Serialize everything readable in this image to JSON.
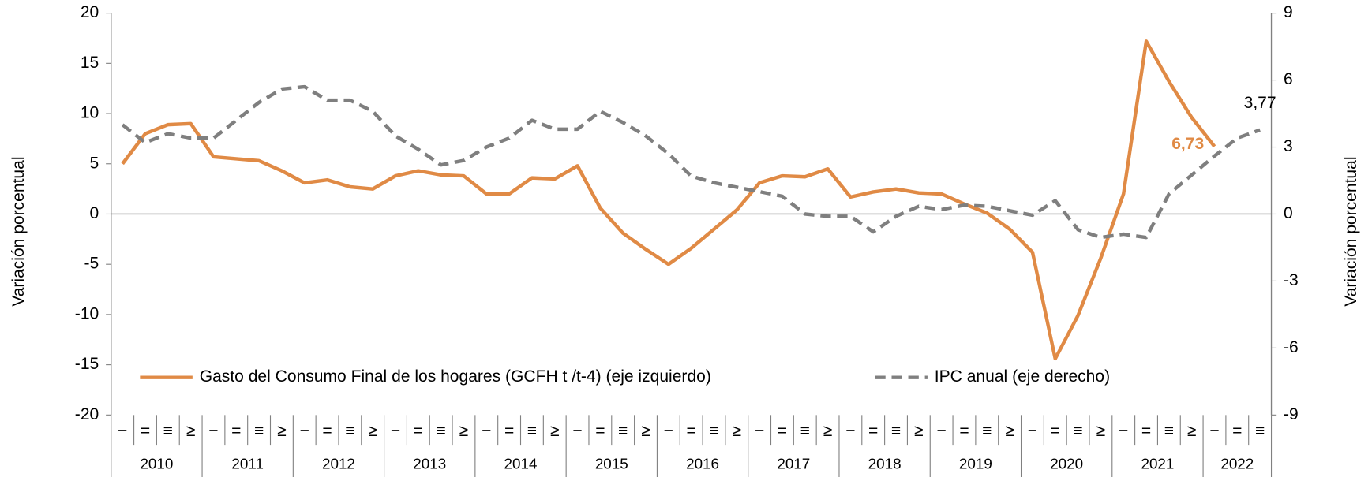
{
  "chart_data": {
    "type": "line",
    "categories": [
      "−",
      "=",
      "≡",
      "≥",
      "−",
      "=",
      "≡",
      "≥",
      "−",
      "=",
      "≡",
      "≥",
      "−",
      "=",
      "≡",
      "≥",
      "−",
      "=",
      "≡",
      "≥",
      "−",
      "=",
      "≡",
      "≥",
      "−",
      "=",
      "≡",
      "≥",
      "−",
      "=",
      "≡",
      "≥",
      "−",
      "=",
      "≡",
      "≥",
      "−",
      "=",
      "≡",
      "≥",
      "−",
      "=",
      "≡",
      "≥",
      "−",
      "=",
      "≡",
      "≥",
      "−",
      "=",
      "≡"
    ],
    "years": [
      "2010",
      "2011",
      "2012",
      "2013",
      "2014",
      "2015",
      "2016",
      "2017",
      "2018",
      "2019",
      "2020",
      "2021",
      "2022"
    ],
    "y_label": "Variación porcentual",
    "y2_label": "Variación porcentual",
    "ylim": [
      -20,
      20
    ],
    "yticks": [
      -20,
      -15,
      -10,
      -5,
      0,
      5,
      10,
      15,
      20
    ],
    "y2lim": [
      -9,
      9
    ],
    "y2ticks": [
      -9,
      -6,
      -3,
      0,
      3,
      6,
      9
    ],
    "series": [
      {
        "name": "Gasto del Consumo Final de los hogares (GCFH t /t-4)  (eje izquierdo)",
        "color": "#e08a45",
        "dash": false,
        "axis": "y",
        "values": [
          5.0,
          8.0,
          8.9,
          9.0,
          5.7,
          5.5,
          5.3,
          4.3,
          3.1,
          3.4,
          2.7,
          2.5,
          3.8,
          4.3,
          3.9,
          3.8,
          2.0,
          2.0,
          3.6,
          3.5,
          4.8,
          0.6,
          -1.9,
          -3.5,
          -5.0,
          -3.4,
          -1.5,
          0.4,
          3.1,
          3.8,
          3.7,
          4.5,
          1.7,
          2.2,
          2.5,
          2.1,
          2.0,
          1.0,
          0.1,
          -1.5,
          -3.8,
          -14.4,
          -10.1,
          -4.4,
          2.0,
          17.2,
          13.2,
          9.6,
          6.73,
          null,
          null
        ],
        "value_labels": {
          "48": "6,73"
        }
      },
      {
        "name": "IPC anual (eje derecho)",
        "color": "#7f7f7f",
        "dash": true,
        "axis": "y2",
        "values": [
          4.0,
          3.2,
          3.6,
          3.4,
          3.4,
          4.2,
          5.0,
          5.6,
          5.7,
          5.1,
          5.1,
          4.6,
          3.5,
          2.9,
          2.2,
          2.4,
          3.0,
          3.4,
          4.2,
          3.8,
          3.8,
          4.6,
          4.1,
          3.5,
          2.7,
          1.7,
          1.4,
          1.2,
          1.0,
          0.8,
          0.0,
          -0.1,
          -0.1,
          -0.8,
          -0.1,
          0.35,
          0.2,
          0.4,
          0.35,
          0.15,
          -0.05,
          0.6,
          -0.7,
          -1.05,
          -0.9,
          -1.05,
          0.9,
          1.75,
          2.6,
          3.4,
          3.77
        ],
        "value_labels": {
          "50": "3,77"
        }
      }
    ]
  }
}
